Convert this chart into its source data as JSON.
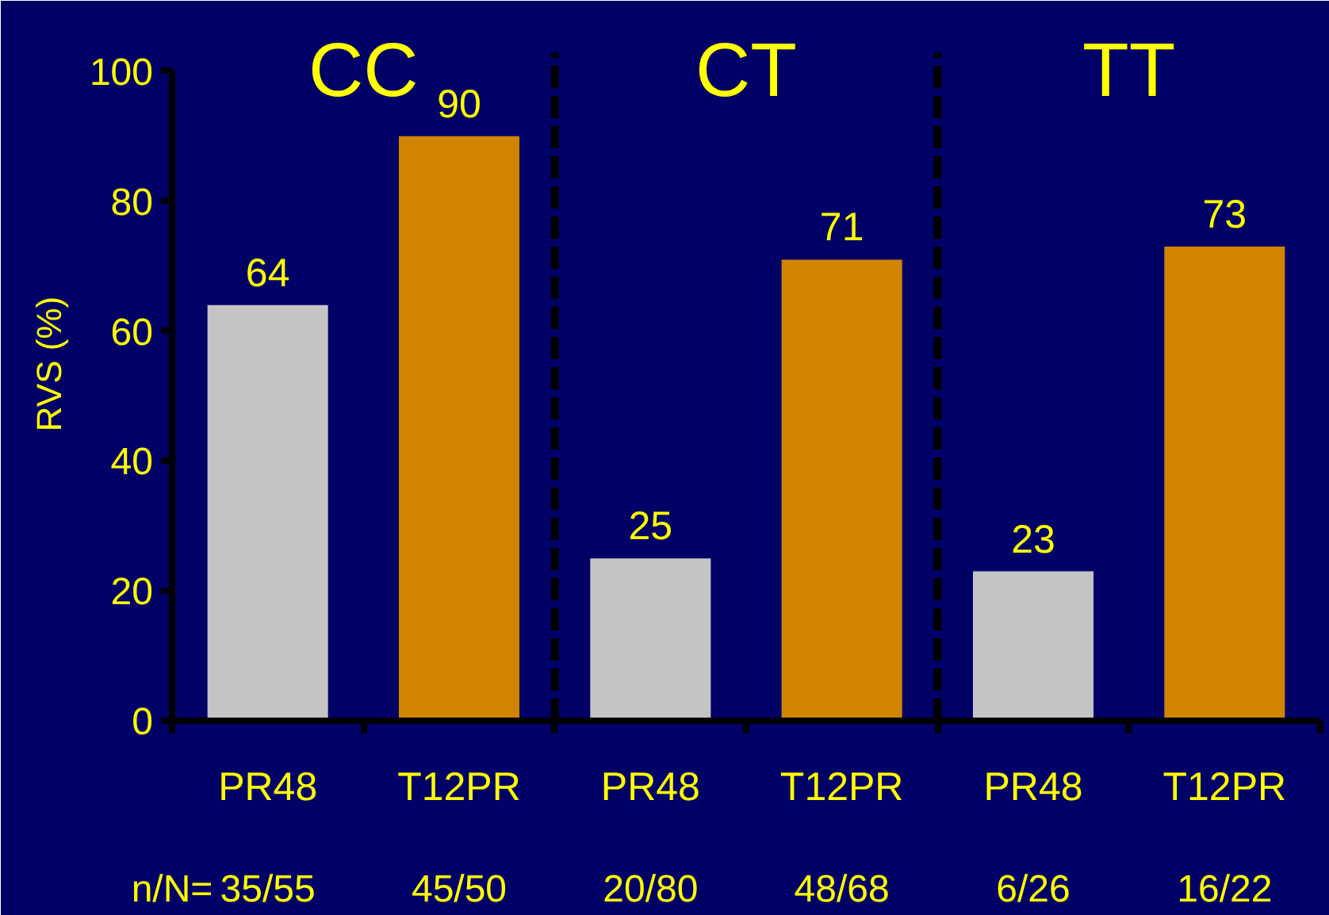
{
  "chart_data": {
    "type": "bar",
    "categories": [
      "PR48",
      "T12PR",
      "PR48",
      "T12PR",
      "PR48",
      "T12PR"
    ],
    "values": [
      64,
      90,
      25,
      71,
      23,
      73
    ],
    "colors": [
      "#c4c4c4",
      "#d08400",
      "#c4c4c4",
      "#d08400",
      "#c4c4c4",
      "#d08400"
    ],
    "ylabel": "RVS (%)",
    "ylim": [
      0,
      100
    ],
    "yticks": [
      0,
      20,
      40,
      60,
      80,
      100
    ],
    "data_labels": true,
    "annotations": [
      "CC",
      "CT",
      "TT",
      "n/N=",
      "35/55",
      "45/50",
      "20/80",
      "48/68",
      "6/26",
      "16/22"
    ]
  }
}
